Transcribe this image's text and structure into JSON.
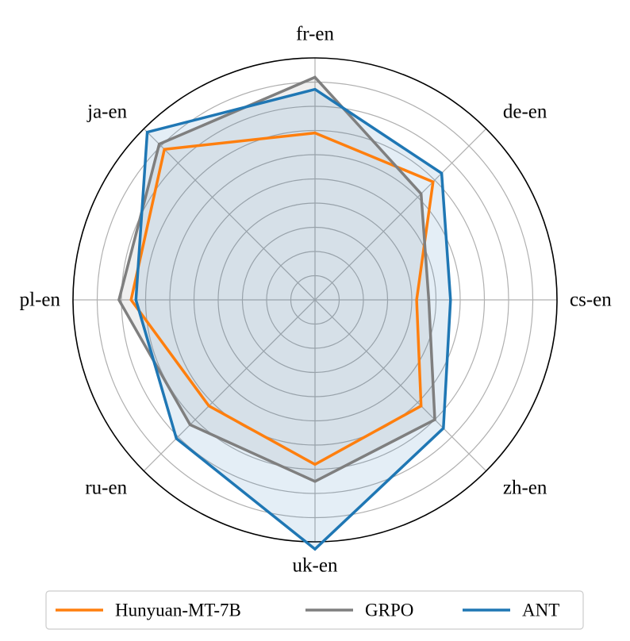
{
  "chart_data": {
    "type": "radar",
    "categories": [
      "fr-en",
      "de-en",
      "cs-en",
      "zh-en",
      "uk-en",
      "ru-en",
      "pl-en",
      "ja-en"
    ],
    "rlim": [
      0,
      1
    ],
    "rings": 9,
    "grid": true,
    "series": [
      {
        "name": "Hunyuan-MT-7B",
        "color": "#ff7f0e",
        "values": [
          0.69,
          0.69,
          0.42,
          0.62,
          0.68,
          0.62,
          0.76,
          0.88
        ],
        "fill": false
      },
      {
        "name": "GRPO",
        "color": "#7f7f7f",
        "values": [
          0.92,
          0.62,
          0.47,
          0.7,
          0.75,
          0.73,
          0.81,
          0.91
        ],
        "fill": true
      },
      {
        "name": "ANT",
        "color": "#1f77b4",
        "values": [
          0.87,
          0.74,
          0.56,
          0.75,
          1.03,
          0.81,
          0.74,
          0.98
        ],
        "fill": true
      }
    ],
    "legend_position": "bottom"
  }
}
